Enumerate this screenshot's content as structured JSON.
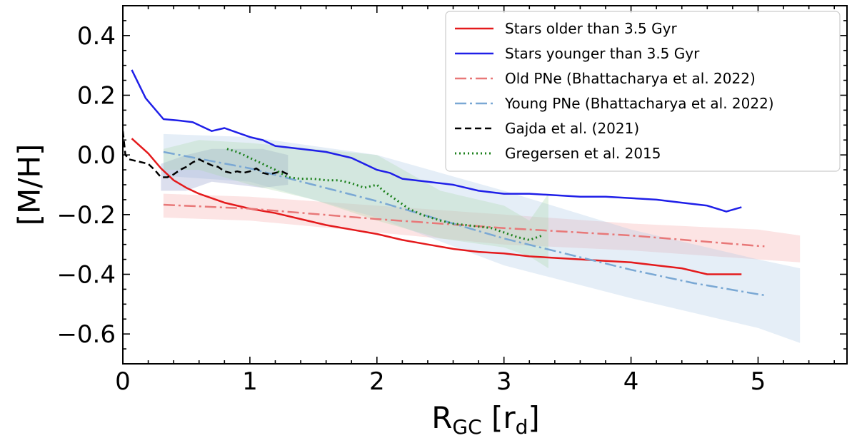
{
  "chart_data": {
    "type": "line",
    "xlabel": "R",
    "xlabel_sub": "GC",
    "xlabel_unit_pre": " [r",
    "xlabel_unit_sub": "d",
    "xlabel_unit_post": "]",
    "ylabel": "[M/H]",
    "xlim": [
      0,
      5.7
    ],
    "ylim": [
      -0.7,
      0.5
    ],
    "xticks": [
      0,
      1,
      2,
      3,
      4,
      5
    ],
    "xtick_labels": [
      "0",
      "1",
      "2",
      "3",
      "4",
      "5"
    ],
    "yticks": [
      0.4,
      0.2,
      0.0,
      -0.2,
      -0.4,
      -0.6
    ],
    "ytick_labels": [
      "0.4",
      "0.2",
      "0.0",
      "−0.2",
      "−0.4",
      "−0.6"
    ],
    "legend_position": "top-right",
    "bands": [
      {
        "name": "Old PNe band",
        "color": "#f4a6a6",
        "opacity": 0.3,
        "x": [
          0.32,
          1,
          2,
          3,
          4,
          5,
          5.33
        ],
        "upper": [
          -0.13,
          -0.14,
          -0.17,
          -0.2,
          -0.23,
          -0.25,
          -0.27
        ],
        "lower": [
          -0.21,
          -0.22,
          -0.26,
          -0.3,
          -0.32,
          -0.35,
          -0.36
        ]
      },
      {
        "name": "Young PNe band",
        "color": "#a9c6e6",
        "opacity": 0.3,
        "x": [
          0.32,
          1,
          2,
          3,
          4,
          5,
          5.33
        ],
        "upper": [
          0.07,
          0.06,
          0.0,
          -0.12,
          -0.25,
          -0.35,
          -0.38
        ],
        "lower": [
          -0.07,
          -0.09,
          -0.21,
          -0.37,
          -0.48,
          -0.58,
          -0.63
        ]
      },
      {
        "name": "Gajda band",
        "color": "#8a96c8",
        "opacity": 0.3,
        "x": [
          0.3,
          0.5,
          0.7,
          0.9,
          1.1,
          1.3
        ],
        "upper": [
          -0.03,
          0.0,
          0.02,
          0.02,
          0.02,
          0.0
        ],
        "lower": [
          -0.12,
          -0.12,
          -0.09,
          -0.1,
          -0.11,
          -0.1
        ]
      },
      {
        "name": "Gregersen band",
        "color": "#a8d8a8",
        "opacity": 0.3,
        "x": [
          0.32,
          0.6,
          1.0,
          1.5,
          2.0,
          2.5,
          3.0,
          3.2,
          3.35
        ],
        "upper": [
          0.02,
          0.05,
          0.04,
          0.02,
          0.0,
          -0.12,
          -0.17,
          -0.22,
          -0.13
        ],
        "lower": [
          -0.05,
          -0.05,
          -0.1,
          -0.15,
          -0.22,
          -0.28,
          -0.31,
          -0.34,
          -0.38
        ]
      }
    ],
    "series": [
      {
        "name": "Stars older than 3.5 Gyr",
        "color": "#e41a1c",
        "dash": "",
        "width": 2.5,
        "x": [
          0.07,
          0.2,
          0.3,
          0.4,
          0.5,
          0.6,
          0.7,
          0.8,
          1.0,
          1.2,
          1.4,
          1.6,
          1.8,
          2.0,
          2.2,
          2.4,
          2.6,
          2.8,
          3.0,
          3.2,
          3.4,
          3.6,
          3.8,
          4.0,
          4.2,
          4.4,
          4.6,
          4.87
        ],
        "y": [
          0.055,
          0.005,
          -0.045,
          -0.085,
          -0.11,
          -0.13,
          -0.145,
          -0.16,
          -0.18,
          -0.195,
          -0.215,
          -0.235,
          -0.25,
          -0.265,
          -0.285,
          -0.3,
          -0.315,
          -0.325,
          -0.33,
          -0.34,
          -0.345,
          -0.35,
          -0.355,
          -0.36,
          -0.37,
          -0.38,
          -0.4,
          -0.4
        ]
      },
      {
        "name": "Stars younger than 3.5 Gyr",
        "color": "#1f1fe8",
        "dash": "",
        "width": 2.5,
        "x": [
          0.07,
          0.18,
          0.32,
          0.45,
          0.55,
          0.7,
          0.8,
          0.9,
          1.0,
          1.1,
          1.2,
          1.4,
          1.6,
          1.8,
          2.0,
          2.1,
          2.2,
          2.4,
          2.6,
          2.8,
          3.0,
          3.2,
          3.4,
          3.6,
          3.8,
          4.0,
          4.2,
          4.4,
          4.6,
          4.75,
          4.87
        ],
        "y": [
          0.285,
          0.19,
          0.12,
          0.115,
          0.11,
          0.08,
          0.09,
          0.075,
          0.06,
          0.05,
          0.03,
          0.02,
          0.01,
          -0.01,
          -0.05,
          -0.06,
          -0.08,
          -0.09,
          -0.1,
          -0.12,
          -0.13,
          -0.13,
          -0.135,
          -0.14,
          -0.14,
          -0.145,
          -0.15,
          -0.16,
          -0.17,
          -0.19,
          -0.175
        ]
      },
      {
        "name": "Old PNe (Bhattacharya et al. 2022)",
        "color": "#e87878",
        "dash": "16,5,3,5",
        "width": 2.5,
        "x": [
          0.32,
          1,
          2,
          3,
          4,
          5,
          5.05
        ],
        "y": [
          -0.167,
          -0.18,
          -0.215,
          -0.245,
          -0.27,
          -0.305,
          -0.306
        ]
      },
      {
        "name": "Young PNe (Bhattacharya et al. 2022)",
        "color": "#7aa8d4",
        "dash": "16,5,3,5",
        "width": 2.5,
        "x": [
          0.32,
          1,
          2,
          3,
          4,
          4.5,
          5,
          5.05
        ],
        "y": [
          0.01,
          -0.045,
          -0.155,
          -0.28,
          -0.385,
          -0.43,
          -0.467,
          -0.47
        ]
      },
      {
        "name": "Gajda et al. (2021)",
        "color": "#000000",
        "dash": "9,5",
        "width": 2.5,
        "x": [
          0.0,
          0.02,
          0.05,
          0.1,
          0.15,
          0.2,
          0.25,
          0.3,
          0.35,
          0.4,
          0.45,
          0.5,
          0.55,
          0.6,
          0.65,
          0.7,
          0.75,
          0.8,
          0.85,
          0.9,
          0.95,
          1.0,
          1.05,
          1.1,
          1.15,
          1.2,
          1.25,
          1.3
        ],
        "y": [
          0.08,
          0.0,
          -0.015,
          -0.02,
          -0.025,
          -0.03,
          -0.05,
          -0.075,
          -0.075,
          -0.065,
          -0.05,
          -0.04,
          -0.025,
          -0.015,
          -0.025,
          -0.035,
          -0.04,
          -0.055,
          -0.06,
          -0.055,
          -0.06,
          -0.055,
          -0.045,
          -0.06,
          -0.065,
          -0.06,
          -0.055,
          -0.065
        ]
      },
      {
        "name": "Gregersen et al. 2015",
        "color": "#1a7f1a",
        "dash": "2,4",
        "width": 3,
        "x": [
          0.82,
          0.9,
          1.0,
          1.1,
          1.2,
          1.3,
          1.4,
          1.5,
          1.6,
          1.7,
          1.8,
          1.9,
          2.0,
          2.05,
          2.15,
          2.25,
          2.35,
          2.5,
          2.6,
          2.7,
          2.8,
          2.9,
          3.0,
          3.1,
          3.2,
          3.3
        ],
        "y": [
          0.02,
          0.01,
          -0.01,
          -0.03,
          -0.05,
          -0.075,
          -0.08,
          -0.08,
          -0.085,
          -0.085,
          -0.095,
          -0.11,
          -0.1,
          -0.12,
          -0.15,
          -0.18,
          -0.2,
          -0.22,
          -0.23,
          -0.235,
          -0.24,
          -0.245,
          -0.26,
          -0.275,
          -0.285,
          -0.27
        ]
      }
    ],
    "legend": [
      "Stars older than 3.5 Gyr",
      "Stars younger than 3.5 Gyr",
      "Old PNe (Bhattacharya et al. 2022)",
      "Young PNe (Bhattacharya et al. 2022)",
      "Gajda et al. (2021)",
      "Gregersen et al. 2015"
    ]
  }
}
